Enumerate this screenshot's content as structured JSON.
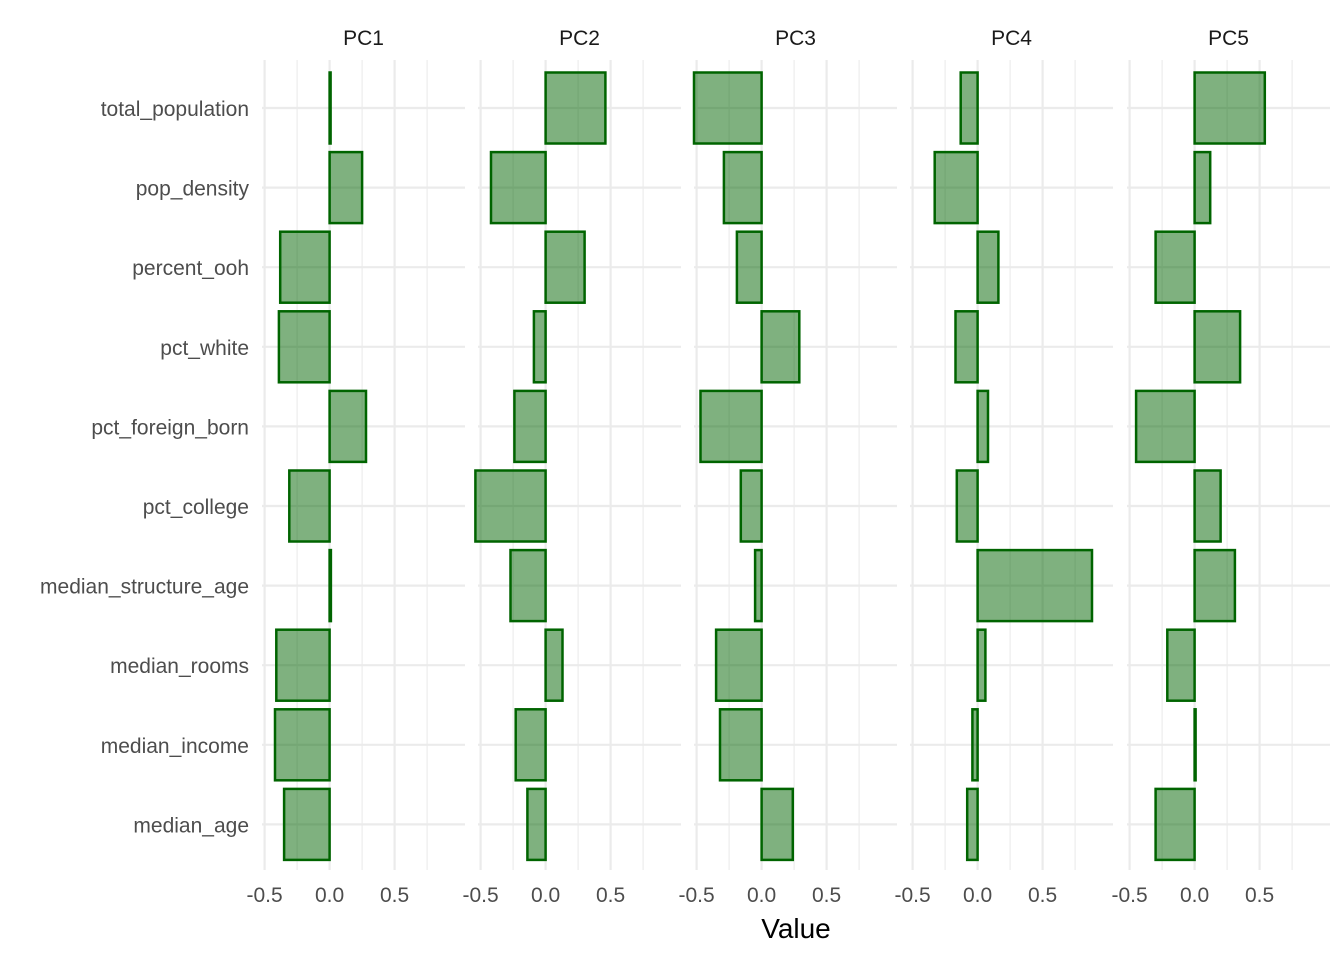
{
  "chart_data": {
    "type": "bar",
    "orientation": "horizontal",
    "facet": "wrap",
    "panels": [
      "PC1",
      "PC2",
      "PC3",
      "PC4",
      "PC5"
    ],
    "categories": [
      "total_population",
      "pop_density",
      "percent_ooh",
      "pct_white",
      "pct_foreign_born",
      "pct_college",
      "median_structure_age",
      "median_rooms",
      "median_income",
      "median_age"
    ],
    "series": [
      {
        "name": "PC1",
        "values": [
          0.005,
          0.25,
          -0.38,
          -0.39,
          0.28,
          -0.31,
          0.01,
          -0.41,
          -0.42,
          -0.35
        ]
      },
      {
        "name": "PC2",
        "values": [
          0.46,
          -0.42,
          0.3,
          -0.09,
          -0.24,
          -0.54,
          -0.27,
          0.13,
          -0.23,
          -0.14
        ]
      },
      {
        "name": "PC3",
        "values": [
          -0.52,
          -0.29,
          -0.19,
          0.29,
          -0.47,
          -0.16,
          -0.05,
          -0.35,
          -0.32,
          0.24
        ]
      },
      {
        "name": "PC4",
        "values": [
          -0.13,
          -0.33,
          0.16,
          -0.17,
          0.08,
          -0.16,
          0.88,
          0.06,
          -0.04,
          -0.08
        ]
      },
      {
        "name": "PC5",
        "values": [
          0.54,
          0.12,
          -0.3,
          0.35,
          -0.45,
          0.2,
          0.31,
          -0.21,
          0.005,
          -0.3
        ]
      }
    ],
    "xlim": [
      -0.52,
      0.95
    ],
    "xticks": [
      "-0.5",
      "0.0",
      "0.5"
    ],
    "xlabel": "Value",
    "ylabel": "",
    "title": "",
    "grid": true,
    "legend": "none",
    "colors": {
      "bar_fill": "#006400",
      "bar_stroke": "#006400",
      "grid": "#ebebeb",
      "background": "#ffffff"
    }
  }
}
